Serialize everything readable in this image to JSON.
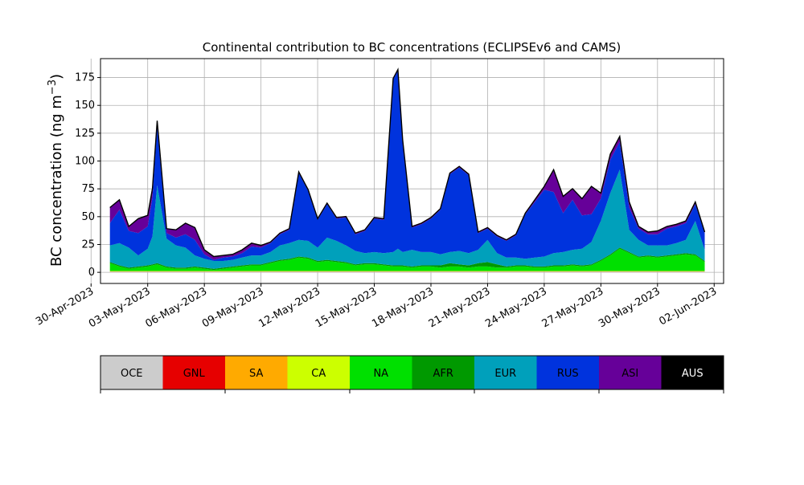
{
  "chart_data": {
    "type": "area",
    "title": "Continental contribution to BC concentrations (ECLIPSEv6 and CAMS)",
    "xlabel": "",
    "ylabel": "BC concentration (ng m⁻³)",
    "ylabel_main": "BC concentration (ng m",
    "ylabel_sup": "−3",
    "ylabel_close": ")",
    "ylim": [
      -10,
      192
    ],
    "xlim": [
      "2023-04-30T12:00",
      "2023-06-02T12:00"
    ],
    "grid": true,
    "yticks": [
      0,
      25,
      50,
      75,
      100,
      125,
      150,
      175
    ],
    "xticks": [
      "2023-04-30",
      "2023-05-03",
      "2023-05-06",
      "2023-05-09",
      "2023-05-12",
      "2023-05-15",
      "2023-05-18",
      "2023-05-21",
      "2023-05-24",
      "2023-05-27",
      "2023-05-30",
      "2023-06-02"
    ],
    "xtick_labels": [
      "30-Apr-2023",
      "03-May-2023",
      "06-May-2023",
      "09-May-2023",
      "12-May-2023",
      "15-May-2023",
      "18-May-2023",
      "21-May-2023",
      "24-May-2023",
      "27-May-2023",
      "30-May-2023",
      "02-Jun-2023"
    ],
    "x": [
      "2023-05-01",
      "2023-05-01T12:00",
      "2023-05-02",
      "2023-05-02T12:00",
      "2023-05-03",
      "2023-05-03T06:00",
      "2023-05-03T12:00",
      "2023-05-04",
      "2023-05-04T12:00",
      "2023-05-05",
      "2023-05-05T12:00",
      "2023-05-06",
      "2023-05-06T12:00",
      "2023-05-07",
      "2023-05-07T12:00",
      "2023-05-08",
      "2023-05-08T12:00",
      "2023-05-09",
      "2023-05-09T12:00",
      "2023-05-10",
      "2023-05-10T12:00",
      "2023-05-11",
      "2023-05-11T12:00",
      "2023-05-12",
      "2023-05-12T12:00",
      "2023-05-13",
      "2023-05-13T12:00",
      "2023-05-14",
      "2023-05-14T12:00",
      "2023-05-15",
      "2023-05-15T12:00",
      "2023-05-16",
      "2023-05-16T06:00",
      "2023-05-16T12:00",
      "2023-05-17",
      "2023-05-17T12:00",
      "2023-05-18",
      "2023-05-18T12:00",
      "2023-05-19",
      "2023-05-19T12:00",
      "2023-05-20",
      "2023-05-20T12:00",
      "2023-05-21",
      "2023-05-21T12:00",
      "2023-05-22",
      "2023-05-22T12:00",
      "2023-05-23",
      "2023-05-23T12:00",
      "2023-05-24",
      "2023-05-24T12:00",
      "2023-05-25",
      "2023-05-25T12:00",
      "2023-05-26",
      "2023-05-26T12:00",
      "2023-05-27",
      "2023-05-27T12:00",
      "2023-05-28",
      "2023-05-28T12:00",
      "2023-05-29",
      "2023-05-29T12:00",
      "2023-05-30",
      "2023-05-30T12:00",
      "2023-05-31",
      "2023-05-31T12:00",
      "2023-06-01",
      "2023-06-01T12:00"
    ],
    "series": [
      {
        "name": "OCE",
        "color": "#cccccc",
        "values": [
          0.5,
          0.5,
          0.5,
          0.5,
          0.5,
          0.5,
          0.5,
          0.5,
          0.5,
          0.5,
          0.5,
          0.5,
          0.5,
          0.5,
          0.5,
          0.5,
          0.5,
          0.5,
          0.5,
          0.5,
          0.5,
          0.5,
          0.5,
          0.5,
          0.5,
          0.5,
          0.5,
          0.5,
          0.5,
          0.5,
          0.5,
          0.5,
          0.5,
          0.5,
          0.5,
          0.5,
          0.5,
          0.5,
          0.5,
          0.5,
          0.5,
          0.5,
          0.5,
          0.5,
          0.5,
          0.5,
          0.5,
          0.5,
          0.5,
          0.5,
          0.5,
          0.5,
          0.5,
          0.5,
          0.5,
          0.5,
          0.5,
          0.5,
          0.5,
          0.5,
          0.5,
          0.5,
          0.5,
          0.5,
          0.5,
          0.5
        ]
      },
      {
        "name": "GNL",
        "color": "#e60000",
        "values": [
          0.2,
          0.2,
          0.2,
          0.2,
          0.2,
          0.2,
          0.2,
          0.2,
          0.2,
          0.2,
          0.2,
          0.2,
          0.2,
          0.2,
          0.2,
          0.2,
          0.2,
          0.2,
          0.2,
          0.2,
          0.2,
          0.2,
          0.2,
          0.2,
          0.2,
          0.2,
          0.2,
          0.2,
          0.2,
          0.2,
          0.2,
          0.2,
          0.2,
          0.2,
          0.2,
          0.2,
          0.2,
          0.2,
          0.2,
          0.2,
          0.2,
          0.2,
          0.2,
          0.2,
          0.2,
          0.2,
          0.2,
          0.2,
          0.2,
          0.2,
          0.2,
          0.2,
          0.2,
          0.2,
          0.2,
          0.2,
          0.2,
          0.2,
          0.2,
          0.2,
          0.2,
          0.2,
          0.2,
          0.2,
          0.2,
          0.2
        ]
      },
      {
        "name": "SA",
        "color": "#ffaa00",
        "values": [
          0.3,
          0.3,
          0.3,
          0.3,
          0.3,
          0.3,
          0.3,
          0.3,
          0.3,
          0.3,
          0.3,
          0.3,
          0.3,
          0.3,
          0.3,
          0.3,
          0.3,
          0.3,
          0.3,
          0.3,
          0.3,
          0.3,
          0.3,
          0.3,
          0.3,
          0.3,
          0.3,
          0.3,
          0.3,
          0.3,
          0.3,
          0.3,
          0.3,
          0.3,
          0.3,
          0.3,
          0.3,
          0.3,
          0.3,
          0.3,
          0.3,
          0.3,
          0.3,
          0.3,
          0.3,
          0.3,
          0.3,
          0.3,
          0.3,
          0.3,
          0.3,
          0.3,
          0.3,
          0.3,
          0.3,
          0.3,
          0.3,
          0.3,
          0.3,
          0.3,
          0.3,
          0.3,
          0.3,
          0.3,
          0.3,
          0.3
        ]
      },
      {
        "name": "CA",
        "color": "#ccff00",
        "values": [
          0.2,
          0.2,
          0.2,
          0.2,
          0.2,
          0.2,
          0.2,
          0.2,
          0.2,
          0.2,
          0.2,
          0.2,
          0.2,
          0.2,
          0.2,
          0.2,
          0.2,
          0.2,
          0.2,
          0.2,
          0.2,
          0.2,
          0.2,
          0.2,
          0.2,
          0.2,
          0.2,
          0.2,
          0.2,
          0.2,
          0.2,
          0.2,
          0.2,
          0.2,
          0.2,
          0.2,
          0.2,
          0.2,
          0.2,
          0.2,
          0.2,
          0.2,
          0.2,
          0.2,
          0.2,
          0.2,
          0.2,
          0.2,
          0.2,
          0.2,
          0.2,
          0.2,
          0.2,
          0.2,
          0.2,
          0.2,
          0.2,
          0.2,
          0.2,
          0.2,
          0.2,
          0.2,
          0.2,
          0.2,
          0.2,
          0.2
        ]
      },
      {
        "name": "NA",
        "color": "#00e000",
        "values": [
          7,
          4,
          2,
          3,
          4,
          5,
          6,
          3,
          2,
          2,
          3,
          2,
          1,
          2,
          3,
          4,
          5,
          5,
          7,
          9,
          10,
          12,
          11,
          8,
          9,
          8,
          7,
          5,
          6,
          6,
          5,
          4,
          4,
          4,
          3,
          4,
          4,
          3,
          4,
          4,
          3,
          4,
          4,
          3,
          3,
          4,
          4,
          3,
          3,
          4,
          4,
          5,
          4,
          5,
          9,
          14,
          20,
          16,
          12,
          13,
          12,
          13,
          14,
          15,
          14,
          8
        ]
      },
      {
        "name": "AFR",
        "color": "#009900",
        "values": [
          1,
          1,
          1,
          1,
          1,
          1,
          1,
          1,
          1,
          1,
          1,
          1,
          1,
          1,
          1,
          1,
          1,
          1,
          1,
          1,
          1,
          1,
          1,
          1,
          1,
          1,
          1,
          1,
          1,
          1,
          1,
          1,
          1,
          1,
          1,
          1,
          1,
          2,
          3,
          2,
          2,
          3,
          4,
          3,
          1,
          1,
          1,
          1,
          1,
          1,
          1,
          1,
          1,
          1,
          1,
          1,
          1,
          1,
          1,
          1,
          1,
          1,
          1,
          1,
          1,
          1
        ]
      },
      {
        "name": "EUR",
        "color": "#00a0bb",
        "values": [
          15,
          20,
          18,
          10,
          15,
          25,
          70,
          25,
          20,
          18,
          10,
          8,
          7,
          6,
          6,
          7,
          8,
          8,
          9,
          13,
          14,
          15,
          15,
          12,
          20,
          18,
          15,
          12,
          9,
          10,
          10,
          12,
          15,
          12,
          15,
          12,
          12,
          10,
          10,
          12,
          11,
          12,
          20,
          10,
          8,
          7,
          6,
          8,
          9,
          11,
          12,
          13,
          15,
          20,
          35,
          55,
          70,
          20,
          15,
          9,
          10,
          9,
          10,
          12,
          30,
          10
        ]
      },
      {
        "name": "RUS",
        "color": "#0033dd",
        "values": [
          20,
          30,
          15,
          20,
          20,
          35,
          53,
          5,
          7,
          12,
          14,
          4,
          1,
          3,
          3,
          4,
          8,
          7,
          8,
          10,
          12,
          60,
          45,
          25,
          30,
          20,
          25,
          15,
          20,
          30,
          30,
          155,
          160,
          100,
          20,
          25,
          30,
          40,
          70,
          75,
          70,
          15,
          10,
          15,
          15,
          20,
          40,
          50,
          60,
          55,
          35,
          45,
          30,
          25,
          20,
          30,
          25,
          20,
          10,
          10,
          10,
          15,
          15,
          15,
          15,
          15
        ]
      },
      {
        "name": "ASI",
        "color": "#660099",
        "values": [
          14,
          9,
          4,
          13,
          10,
          8,
          5,
          4,
          7,
          10,
          11,
          4,
          3,
          2,
          2,
          3,
          3,
          2,
          1,
          1,
          1,
          1,
          1,
          1,
          1,
          1,
          1,
          1,
          1,
          1,
          1,
          1,
          1,
          1,
          1,
          1,
          1,
          1,
          1,
          1,
          1,
          1,
          1,
          1,
          1,
          1,
          1,
          2,
          3,
          20,
          15,
          10,
          15,
          25,
          5,
          5,
          5,
          5,
          2,
          2,
          3,
          2,
          2,
          2,
          2,
          1
        ]
      },
      {
        "name": "AUS",
        "color": "#000000",
        "values": [
          0,
          0,
          0,
          0,
          0,
          0,
          0,
          0,
          0,
          0,
          0,
          0,
          0,
          0,
          0,
          0,
          0,
          0,
          0,
          0,
          0,
          0,
          0,
          0,
          0,
          0,
          0,
          0,
          0,
          0,
          0,
          0,
          0,
          0,
          0,
          0,
          0,
          0,
          0,
          0,
          0,
          0,
          0,
          0,
          0,
          0,
          0,
          0,
          0,
          0,
          0,
          0,
          0,
          0,
          0,
          0,
          0,
          0,
          0,
          0,
          0,
          0,
          0,
          0,
          0,
          0
        ]
      }
    ],
    "legend": {
      "placement": "bottom",
      "labels": [
        "OCE",
        "GNL",
        "SA",
        "CA",
        "NA",
        "AFR",
        "EUR",
        "RUS",
        "ASI",
        "AUS"
      ],
      "colors": [
        "#cccccc",
        "#e60000",
        "#ffaa00",
        "#ccff00",
        "#00e000",
        "#009900",
        "#00a0bb",
        "#0033dd",
        "#660099",
        "#000000"
      ],
      "label_colors": [
        "#000000",
        "#000000",
        "#000000",
        "#000000",
        "#000000",
        "#000000",
        "#000000",
        "#000000",
        "#000000",
        "#ffffff"
      ]
    }
  }
}
